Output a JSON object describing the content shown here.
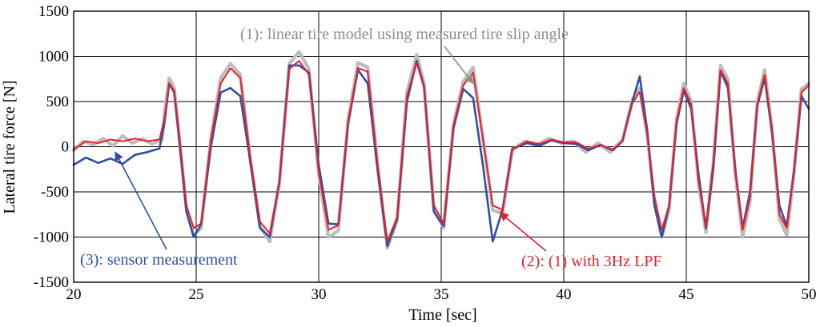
{
  "chart_data": {
    "type": "line",
    "title": "",
    "xlabel": "Time [sec]",
    "ylabel": "Lateral tire force [N]",
    "xlim": [
      20,
      50
    ],
    "ylim": [
      -1500,
      1500
    ],
    "xticks": [
      20,
      25,
      30,
      35,
      40,
      45,
      50
    ],
    "yticks": [
      -1500,
      -1000,
      -500,
      0,
      500,
      1000,
      1500
    ],
    "grid": true,
    "series": [
      {
        "name": "(1): linear tire model using measured tire slip angle",
        "color": "#bdbdbd",
        "style": "solid",
        "points": [
          [
            20,
            -40
          ],
          [
            20.4,
            60
          ],
          [
            20.8,
            20
          ],
          [
            21.2,
            90
          ],
          [
            21.6,
            10
          ],
          [
            22,
            120
          ],
          [
            22.4,
            40
          ],
          [
            22.8,
            90
          ],
          [
            23.2,
            30
          ],
          [
            23.6,
            80
          ],
          [
            23.7,
            350
          ],
          [
            23.9,
            760
          ],
          [
            24.1,
            650
          ],
          [
            24.3,
            120
          ],
          [
            24.6,
            -700
          ],
          [
            24.9,
            -980
          ],
          [
            25.2,
            -900
          ],
          [
            25.6,
            100
          ],
          [
            26.0,
            760
          ],
          [
            26.4,
            920
          ],
          [
            26.8,
            800
          ],
          [
            27.2,
            -120
          ],
          [
            27.6,
            -880
          ],
          [
            28.0,
            -1050
          ],
          [
            28.4,
            -400
          ],
          [
            28.8,
            920
          ],
          [
            29.2,
            1050
          ],
          [
            29.6,
            860
          ],
          [
            30.0,
            -300
          ],
          [
            30.4,
            -1000
          ],
          [
            30.8,
            -930
          ],
          [
            31.2,
            300
          ],
          [
            31.6,
            930
          ],
          [
            32.0,
            880
          ],
          [
            32.4,
            -200
          ],
          [
            32.8,
            -1120
          ],
          [
            33.2,
            -820
          ],
          [
            33.6,
            600
          ],
          [
            34.0,
            1020
          ],
          [
            34.3,
            700
          ],
          [
            34.7,
            -700
          ],
          [
            35.1,
            -900
          ],
          [
            35.5,
            250
          ],
          [
            35.9,
            720
          ],
          [
            36.3,
            880
          ],
          [
            36.7,
            100
          ],
          [
            37.1,
            -700
          ],
          [
            37.5,
            -740
          ],
          [
            37.9,
            -40
          ],
          [
            38.4,
            60
          ],
          [
            38.9,
            20
          ],
          [
            39.4,
            90
          ],
          [
            39.9,
            40
          ],
          [
            40.4,
            60
          ],
          [
            40.9,
            -60
          ],
          [
            41.4,
            40
          ],
          [
            41.9,
            -60
          ],
          [
            42.4,
            80
          ],
          [
            42.8,
            520
          ],
          [
            43.1,
            650
          ],
          [
            43.4,
            150
          ],
          [
            43.7,
            -600
          ],
          [
            44.0,
            -1000
          ],
          [
            44.3,
            -700
          ],
          [
            44.6,
            300
          ],
          [
            44.9,
            700
          ],
          [
            45.2,
            500
          ],
          [
            45.5,
            -400
          ],
          [
            45.8,
            -950
          ],
          [
            46.1,
            -200
          ],
          [
            46.4,
            900
          ],
          [
            46.7,
            750
          ],
          [
            47.0,
            -300
          ],
          [
            47.3,
            -1000
          ],
          [
            47.6,
            -600
          ],
          [
            47.9,
            500
          ],
          [
            48.2,
            850
          ],
          [
            48.5,
            200
          ],
          [
            48.8,
            -800
          ],
          [
            49.1,
            -980
          ],
          [
            49.4,
            -300
          ],
          [
            49.7,
            640
          ],
          [
            50,
            700
          ]
        ]
      },
      {
        "name": "(2): (1) with 3Hz LPF",
        "color": "#e8202a",
        "style": "dotted",
        "points": [
          [
            20,
            -30
          ],
          [
            20.5,
            60
          ],
          [
            21,
            40
          ],
          [
            21.5,
            80
          ],
          [
            22,
            60
          ],
          [
            22.5,
            90
          ],
          [
            23,
            60
          ],
          [
            23.5,
            80
          ],
          [
            23.7,
            300
          ],
          [
            23.9,
            700
          ],
          [
            24.1,
            620
          ],
          [
            24.3,
            150
          ],
          [
            24.6,
            -650
          ],
          [
            24.9,
            -900
          ],
          [
            25.2,
            -850
          ],
          [
            25.6,
            80
          ],
          [
            26.0,
            700
          ],
          [
            26.4,
            870
          ],
          [
            26.8,
            760
          ],
          [
            27.2,
            -100
          ],
          [
            27.6,
            -830
          ],
          [
            28.0,
            -960
          ],
          [
            28.4,
            -380
          ],
          [
            28.8,
            860
          ],
          [
            29.2,
            950
          ],
          [
            29.6,
            800
          ],
          [
            30.0,
            -280
          ],
          [
            30.4,
            -920
          ],
          [
            30.8,
            -870
          ],
          [
            31.2,
            280
          ],
          [
            31.6,
            870
          ],
          [
            32.0,
            830
          ],
          [
            32.4,
            -180
          ],
          [
            32.8,
            -1050
          ],
          [
            33.2,
            -780
          ],
          [
            33.6,
            560
          ],
          [
            34.0,
            930
          ],
          [
            34.3,
            650
          ],
          [
            34.7,
            -650
          ],
          [
            35.1,
            -850
          ],
          [
            35.5,
            230
          ],
          [
            35.9,
            680
          ],
          [
            36.3,
            820
          ],
          [
            36.7,
            90
          ],
          [
            37.1,
            -650
          ],
          [
            37.5,
            -700
          ],
          [
            37.9,
            -30
          ],
          [
            38.5,
            60
          ],
          [
            39,
            30
          ],
          [
            39.5,
            80
          ],
          [
            40,
            50
          ],
          [
            40.5,
            50
          ],
          [
            41,
            -20
          ],
          [
            41.5,
            20
          ],
          [
            42,
            -30
          ],
          [
            42.4,
            60
          ],
          [
            42.8,
            480
          ],
          [
            43.1,
            610
          ],
          [
            43.4,
            150
          ],
          [
            43.7,
            -550
          ],
          [
            44.0,
            -920
          ],
          [
            44.3,
            -650
          ],
          [
            44.6,
            280
          ],
          [
            44.9,
            650
          ],
          [
            45.2,
            470
          ],
          [
            45.5,
            -380
          ],
          [
            45.8,
            -880
          ],
          [
            46.1,
            -180
          ],
          [
            46.4,
            850
          ],
          [
            46.7,
            700
          ],
          [
            47.0,
            -280
          ],
          [
            47.3,
            -920
          ],
          [
            47.6,
            -560
          ],
          [
            47.9,
            470
          ],
          [
            48.2,
            800
          ],
          [
            48.5,
            190
          ],
          [
            48.8,
            -750
          ],
          [
            49.1,
            -900
          ],
          [
            49.4,
            -280
          ],
          [
            49.7,
            600
          ],
          [
            50,
            680
          ]
        ]
      },
      {
        "name": "(3): sensor measurement",
        "color": "#2f4fa8",
        "style": "solid",
        "points": [
          [
            20,
            -200
          ],
          [
            20.5,
            -120
          ],
          [
            21,
            -180
          ],
          [
            21.5,
            -130
          ],
          [
            22,
            -190
          ],
          [
            22.5,
            -90
          ],
          [
            23,
            -60
          ],
          [
            23.5,
            -20
          ],
          [
            23.7,
            250
          ],
          [
            23.9,
            700
          ],
          [
            24.1,
            600
          ],
          [
            24.3,
            100
          ],
          [
            24.6,
            -720
          ],
          [
            24.9,
            -1000
          ],
          [
            25.2,
            -860
          ],
          [
            25.6,
            0
          ],
          [
            26.0,
            600
          ],
          [
            26.4,
            650
          ],
          [
            26.8,
            560
          ],
          [
            27.2,
            -150
          ],
          [
            27.6,
            -900
          ],
          [
            28.0,
            -1000
          ],
          [
            28.4,
            -380
          ],
          [
            28.8,
            900
          ],
          [
            29.2,
            900
          ],
          [
            29.6,
            820
          ],
          [
            30.0,
            -200
          ],
          [
            30.4,
            -850
          ],
          [
            30.8,
            -860
          ],
          [
            31.2,
            250
          ],
          [
            31.6,
            850
          ],
          [
            32.0,
            700
          ],
          [
            32.4,
            -250
          ],
          [
            32.8,
            -1100
          ],
          [
            33.2,
            -800
          ],
          [
            33.6,
            500
          ],
          [
            34.0,
            950
          ],
          [
            34.3,
            660
          ],
          [
            34.7,
            -720
          ],
          [
            35.1,
            -880
          ],
          [
            35.5,
            200
          ],
          [
            35.9,
            640
          ],
          [
            36.3,
            540
          ],
          [
            36.7,
            -200
          ],
          [
            37.1,
            -1050
          ],
          [
            37.5,
            -700
          ],
          [
            37.9,
            -20
          ],
          [
            38.5,
            40
          ],
          [
            39,
            10
          ],
          [
            39.5,
            70
          ],
          [
            40,
            40
          ],
          [
            40.5,
            30
          ],
          [
            41,
            -40
          ],
          [
            41.5,
            20
          ],
          [
            42,
            -40
          ],
          [
            42.4,
            60
          ],
          [
            42.8,
            500
          ],
          [
            43.1,
            780
          ],
          [
            43.4,
            200
          ],
          [
            43.7,
            -650
          ],
          [
            44.0,
            -1000
          ],
          [
            44.3,
            -650
          ],
          [
            44.6,
            250
          ],
          [
            44.9,
            620
          ],
          [
            45.2,
            420
          ],
          [
            45.5,
            -300
          ],
          [
            45.8,
            -900
          ],
          [
            46.1,
            -250
          ],
          [
            46.4,
            840
          ],
          [
            46.7,
            650
          ],
          [
            47.0,
            -250
          ],
          [
            47.3,
            -900
          ],
          [
            47.6,
            -500
          ],
          [
            47.9,
            450
          ],
          [
            48.2,
            760
          ],
          [
            48.5,
            150
          ],
          [
            48.8,
            -650
          ],
          [
            49.1,
            -880
          ],
          [
            49.4,
            -250
          ],
          [
            49.7,
            560
          ],
          [
            50,
            420
          ]
        ]
      }
    ],
    "annotations": [
      {
        "text": "(1): linear tire model using measured tire slip angle",
        "color": "#8e8e8e",
        "target": [
          36.3,
          700
        ]
      },
      {
        "text": "(2): (1) with 3Hz LPF",
        "color": "#e8202a",
        "target": [
          37.4,
          -730
        ]
      },
      {
        "text": "(3): sensor measurement",
        "color": "#2f4fa8",
        "target": [
          21.7,
          -60
        ]
      }
    ]
  }
}
